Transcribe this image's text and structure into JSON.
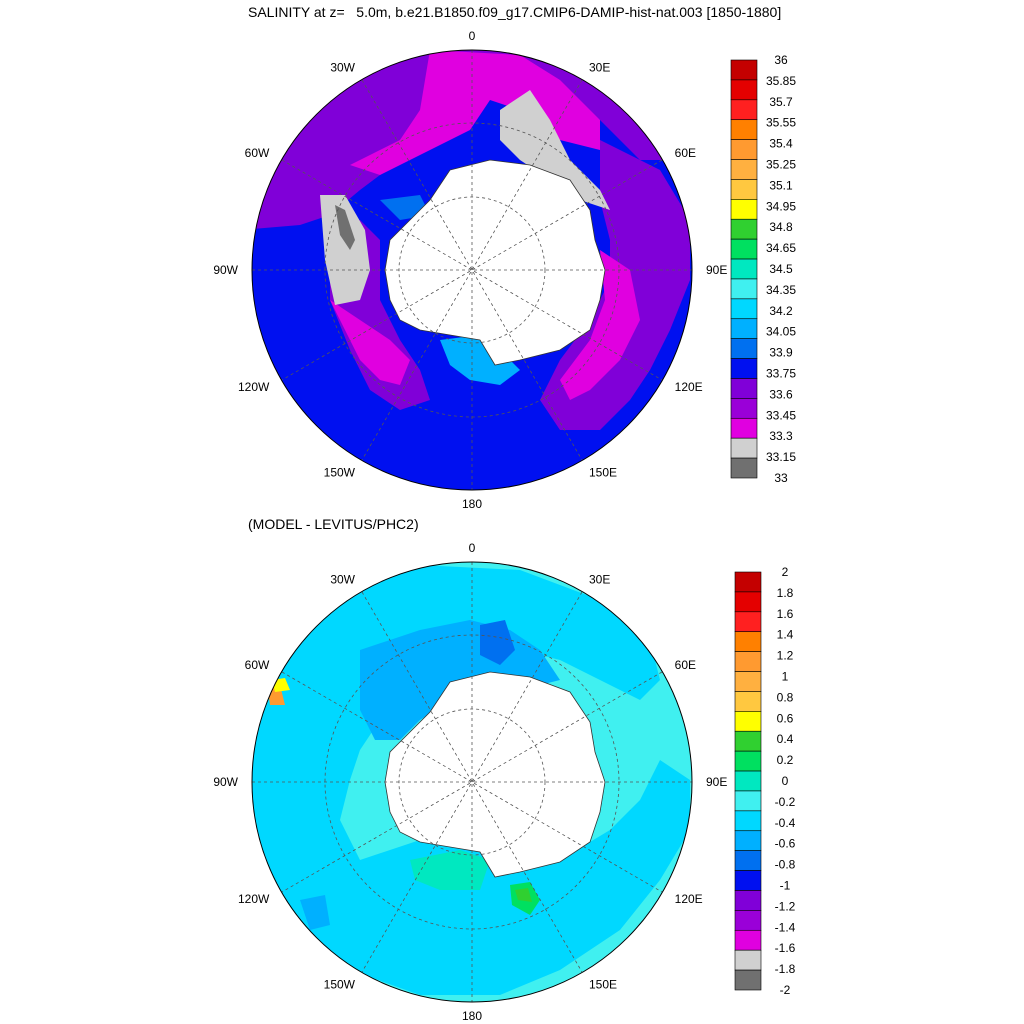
{
  "top_panel": {
    "title": "SALINITY at z=   5.0m, b.e21.B1850.f09_g17.CMIP6-DAMIP-hist-nat.003 [1850-1880]",
    "longitude_labels": [
      "0",
      "30E",
      "60E",
      "90E",
      "120E",
      "150E",
      "180",
      "150W",
      "120W",
      "90W",
      "60W",
      "30W"
    ],
    "colorbar": {
      "labels": [
        "36",
        "35.85",
        "35.7",
        "35.55",
        "35.4",
        "35.25",
        "35.1",
        "34.95",
        "34.8",
        "34.65",
        "34.5",
        "34.35",
        "34.2",
        "34.05",
        "33.9",
        "33.75",
        "33.6",
        "33.45",
        "33.3",
        "33.15",
        "33"
      ],
      "colors": [
        "#c40000",
        "#e40000",
        "#ff2020",
        "#ff8000",
        "#ff9a30",
        "#ffb040",
        "#ffc840",
        "#ffff00",
        "#30d030",
        "#00e060",
        "#00e8c0",
        "#40f0f0",
        "#00d8ff",
        "#00b0ff",
        "#0070f0",
        "#0010f0",
        "#8000d8",
        "#9a00d8",
        "#e000e0",
        "#d0d0d0",
        "#707070"
      ]
    }
  },
  "bottom_panel": {
    "title": "(MODEL - LEVITUS/PHC2)",
    "longitude_labels": [
      "0",
      "30E",
      "60E",
      "90E",
      "120E",
      "150E",
      "180",
      "150W",
      "120W",
      "90W",
      "60W",
      "30W"
    ],
    "colorbar": {
      "labels": [
        "2",
        "1.8",
        "1.6",
        "1.4",
        "1.2",
        "1",
        "0.8",
        "0.6",
        "0.4",
        "0.2",
        "0",
        "-0.2",
        "-0.4",
        "-0.6",
        "-0.8",
        "-1",
        "-1.2",
        "-1.4",
        "-1.6",
        "-1.8",
        "-2"
      ],
      "colors": [
        "#c40000",
        "#e40000",
        "#ff2020",
        "#ff8000",
        "#ff9a30",
        "#ffb040",
        "#ffc840",
        "#ffff00",
        "#30d030",
        "#00e060",
        "#00e8c0",
        "#40f0f0",
        "#00d8ff",
        "#00b0ff",
        "#0070f0",
        "#0010f0",
        "#8000d8",
        "#9a00d8",
        "#e000e0",
        "#d0d0d0",
        "#707070"
      ]
    }
  }
}
